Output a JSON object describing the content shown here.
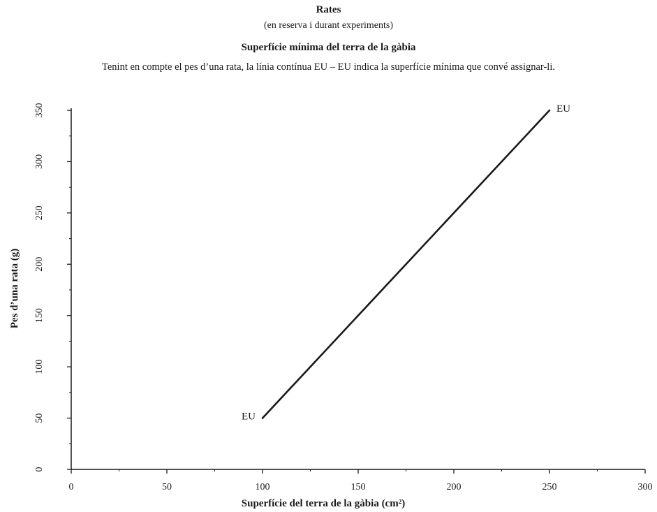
{
  "header": {
    "title": "Rates",
    "subtitle": "(en reserva i durant experiments)",
    "section_title": "Superfície mínima del terra de la gàbia",
    "description": "Tenint en compte el pes d’una rata, la línia contínua EU – EU indica la superfície mínima que convé assignar-li."
  },
  "chart_data": {
    "type": "line",
    "title": "Superfície mínima del terra de la gàbia",
    "xlabel": "Superfície del terra de la gàbia (cm²)",
    "ylabel": "Pes d’una rata (g)",
    "xlim": [
      0,
      300
    ],
    "ylim": [
      0,
      350
    ],
    "x_ticks": [
      "0",
      "50",
      "100",
      "150",
      "200",
      "250",
      "300"
    ],
    "y_ticks": [
      "0",
      "50",
      "100",
      "150",
      "200",
      "250",
      "300",
      "350"
    ],
    "grid": false,
    "series": [
      {
        "x": [
          100,
          250
        ],
        "y": [
          50,
          350
        ],
        "color": "#1a1a1a",
        "annotations": [
          {
            "x": 100,
            "y": 50,
            "text": "EU"
          },
          {
            "x": 250,
            "y": 350,
            "text": "EU"
          }
        ]
      }
    ]
  }
}
